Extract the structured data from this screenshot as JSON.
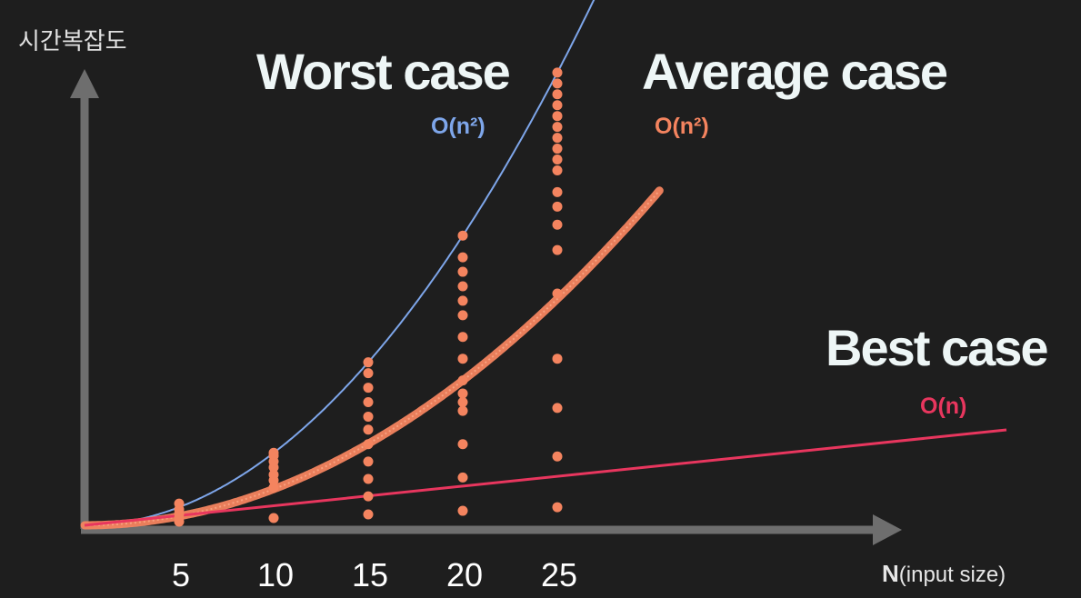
{
  "chart_data": {
    "type": "scatter",
    "ylabel": "시간복잡도",
    "xlabel_bold": "N",
    "xlabel_rest": "(input size)",
    "x_ticks": [
      "5",
      "10",
      "15",
      "20",
      "25"
    ],
    "x_tick_values": [
      5,
      10,
      15,
      20,
      25
    ],
    "grid": false,
    "series": [
      {
        "name": "Worst case",
        "complexity": "O(n²)",
        "kind": "quadratic-curve",
        "color": "#7ea6ea",
        "points": [
          {
            "x": 5,
            "y": 25
          },
          {
            "x": 10,
            "y": 100
          },
          {
            "x": 15,
            "y": 225
          },
          {
            "x": 20,
            "y": 400
          },
          {
            "x": 25,
            "y": 625
          }
        ]
      },
      {
        "name": "Average case",
        "complexity": "O(n²)",
        "kind": "quadratic-band",
        "color": "#f4845f",
        "points": [
          {
            "x": 5,
            "y": 12.5
          },
          {
            "x": 10,
            "y": 50
          },
          {
            "x": 15,
            "y": 112.5
          },
          {
            "x": 20,
            "y": 200
          },
          {
            "x": 25,
            "y": 312.5
          }
        ]
      },
      {
        "name": "Best case",
        "complexity": "O(n)",
        "kind": "linear",
        "color": "#e8365e",
        "points": [
          {
            "x": 5,
            "y": 5
          },
          {
            "x": 10,
            "y": 10
          },
          {
            "x": 15,
            "y": 15
          },
          {
            "x": 20,
            "y": 20
          },
          {
            "x": 25,
            "y": 25
          }
        ]
      }
    ],
    "sample_dots": [
      {
        "x": 5,
        "y": [
          5,
          10,
          16,
          22,
          30
        ]
      },
      {
        "x": 10,
        "y": [
          10,
          52,
          62,
          70,
          80,
          88,
          96,
          100
        ]
      },
      {
        "x": 15,
        "y": [
          15,
          40,
          64,
          88,
          112,
          132,
          150,
          170,
          190,
          210,
          225
        ]
      },
      {
        "x": 20,
        "y": [
          20,
          66,
          112,
          158,
          170,
          182,
          200,
          230,
          260,
          290,
          310,
          330,
          350,
          370,
          400
        ]
      },
      {
        "x": 25,
        "y": [
          25,
          95,
          162,
          230,
          320,
          380,
          415,
          440,
          460,
          490,
          505,
          520,
          535,
          550,
          565,
          580,
          595,
          610,
          625
        ]
      }
    ]
  }
}
